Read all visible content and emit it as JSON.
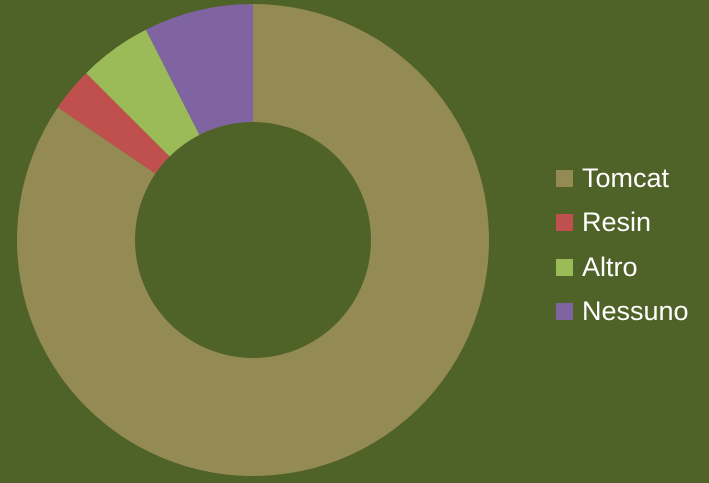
{
  "chart_data": {
    "type": "pie",
    "variant": "donut",
    "categories": [
      "Tomcat",
      "Resin",
      "Altro",
      "Nessuno"
    ],
    "values": [
      84.5,
      3.0,
      5.0,
      7.5
    ],
    "colors": [
      "#948a54",
      "#c0504d",
      "#9bbb59",
      "#8064a2"
    ],
    "background": "#4f6228",
    "legend_position": "right",
    "title": ""
  }
}
